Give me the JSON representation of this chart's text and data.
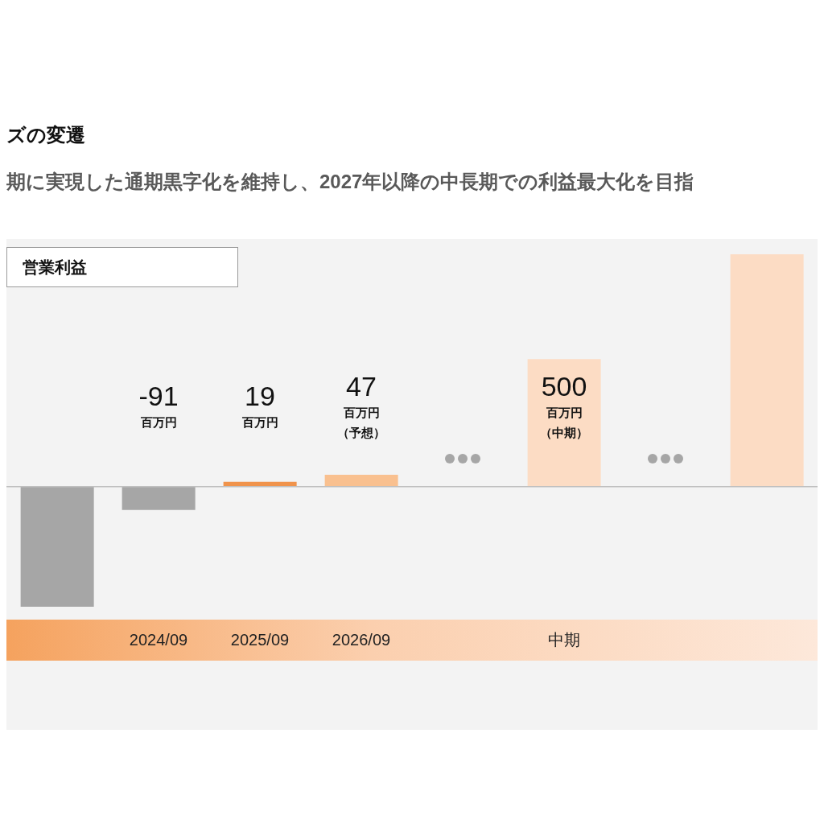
{
  "chart_data": {
    "type": "bar",
    "title": "ズの変遷",
    "subtitle": "期に実現した通期黒字化を維持し、2027年以降の中長期での利益最大化を目指",
    "ylabel": "営業利益",
    "categories": [
      null,
      "2024/09",
      "2025/09",
      "2026/09",
      null,
      "中期",
      null,
      null
    ],
    "values": [
      -470,
      -91,
      19,
      47,
      null,
      500,
      null,
      910
    ],
    "colors": [
      "#a6a6a6",
      "#a6a6a6",
      "#f0934b",
      "#f9c08f",
      null,
      "#fcdcc4",
      null,
      "#fcdcc4"
    ],
    "value_labels": [
      null,
      "-91\n百万円",
      "19\n百万円",
      "47\n百万円（予想）",
      null,
      "500\n百万円（中期）",
      null,
      null
    ],
    "ylim": [
      -470,
      970
    ],
    "tick_labels": "x",
    "ref_lines": [
      {
        "axis": "y",
        "value": 0,
        "color": "#bfbfbf"
      }
    ]
  }
}
